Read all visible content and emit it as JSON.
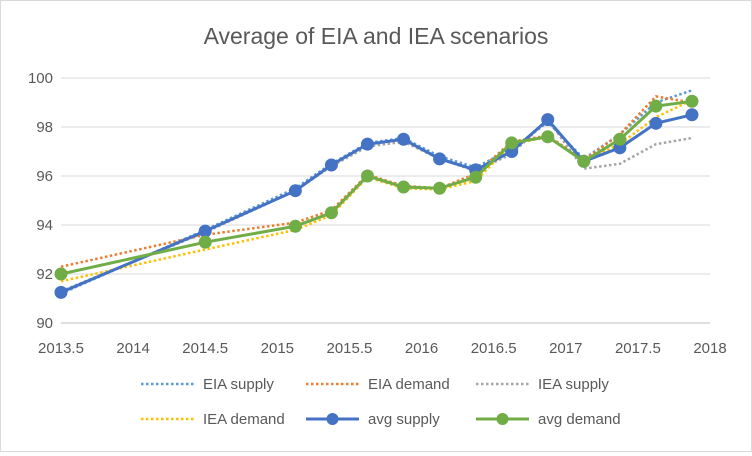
{
  "chart_data": {
    "type": "line",
    "title": "Average of EIA and IEA scenarios",
    "xlabel": "",
    "ylabel": "",
    "xlim": [
      2013.5,
      2018
    ],
    "ylim": [
      90,
      100
    ],
    "x_ticks": [
      "2013.5",
      "2014",
      "2014.5",
      "2015",
      "2015.5",
      "2016",
      "2016.5",
      "2017",
      "2017.5",
      "2018"
    ],
    "y_ticks": [
      "90",
      "92",
      "94",
      "96",
      "98",
      "100"
    ],
    "grid": "horizontal",
    "legend_position": "bottom",
    "series": [
      {
        "name": "EIA supply",
        "style": "dotted",
        "color": "#5b9bd5",
        "points": [
          [
            2013.5,
            91.2
          ],
          [
            2014.5,
            93.8
          ],
          [
            2015.125,
            95.5
          ],
          [
            2015.375,
            96.5
          ],
          [
            2015.625,
            97.35
          ],
          [
            2015.875,
            97.55
          ],
          [
            2016.125,
            96.8
          ],
          [
            2016.375,
            96.35
          ],
          [
            2016.625,
            97.1
          ],
          [
            2016.875,
            98.2
          ],
          [
            2017.125,
            96.7
          ],
          [
            2017.375,
            97.7
          ],
          [
            2017.625,
            99.0
          ],
          [
            2017.875,
            99.5
          ]
        ]
      },
      {
        "name": "EIA demand",
        "style": "dotted",
        "color": "#ed7d31",
        "points": [
          [
            2013.5,
            92.3
          ],
          [
            2014.5,
            93.6
          ],
          [
            2015.125,
            94.1
          ],
          [
            2015.375,
            94.6
          ],
          [
            2015.625,
            96.05
          ],
          [
            2015.875,
            95.6
          ],
          [
            2016.125,
            95.5
          ],
          [
            2016.375,
            96.1
          ],
          [
            2016.625,
            97.4
          ],
          [
            2016.875,
            97.65
          ],
          [
            2017.125,
            96.65
          ],
          [
            2017.375,
            97.7
          ],
          [
            2017.625,
            99.25
          ],
          [
            2017.875,
            99.0
          ]
        ]
      },
      {
        "name": "IEA supply",
        "style": "dotted",
        "color": "#a5a5a5",
        "points": [
          [
            2013.5,
            91.3
          ],
          [
            2014.5,
            93.7
          ],
          [
            2015.125,
            95.4
          ],
          [
            2015.375,
            96.4
          ],
          [
            2015.625,
            97.2
          ],
          [
            2015.875,
            97.4
          ],
          [
            2016.125,
            96.7
          ],
          [
            2016.375,
            96.2
          ],
          [
            2016.625,
            96.9
          ],
          [
            2016.875,
            98.3
          ],
          [
            2017.125,
            96.3
          ],
          [
            2017.375,
            96.5
          ],
          [
            2017.625,
            97.3
          ],
          [
            2017.875,
            97.55
          ]
        ]
      },
      {
        "name": "IEA demand",
        "style": "dotted",
        "color": "#ffc000",
        "points": [
          [
            2013.5,
            91.7
          ],
          [
            2014.5,
            93.0
          ],
          [
            2015.125,
            93.8
          ],
          [
            2015.375,
            94.4
          ],
          [
            2015.625,
            95.95
          ],
          [
            2015.875,
            95.5
          ],
          [
            2016.125,
            95.45
          ],
          [
            2016.375,
            95.8
          ],
          [
            2016.625,
            97.3
          ],
          [
            2016.875,
            97.6
          ],
          [
            2017.125,
            96.6
          ],
          [
            2017.375,
            97.3
          ],
          [
            2017.625,
            98.4
          ],
          [
            2017.875,
            99.1
          ]
        ]
      },
      {
        "name": "avg supply",
        "style": "solid-marker",
        "color": "#4472c4",
        "points": [
          [
            2013.5,
            91.25
          ],
          [
            2014.5,
            93.75
          ],
          [
            2015.125,
            95.4
          ],
          [
            2015.375,
            96.45
          ],
          [
            2015.625,
            97.3
          ],
          [
            2015.875,
            97.5
          ],
          [
            2016.125,
            96.7
          ],
          [
            2016.375,
            96.25
          ],
          [
            2016.625,
            97.0
          ],
          [
            2016.875,
            98.3
          ],
          [
            2017.125,
            96.6
          ],
          [
            2017.375,
            97.15
          ],
          [
            2017.625,
            98.15
          ],
          [
            2017.875,
            98.5
          ]
        ]
      },
      {
        "name": "avg demand",
        "style": "solid-marker",
        "color": "#70ad47",
        "points": [
          [
            2013.5,
            92.0
          ],
          [
            2014.5,
            93.3
          ],
          [
            2015.125,
            93.95
          ],
          [
            2015.375,
            94.5
          ],
          [
            2015.625,
            96.0
          ],
          [
            2015.875,
            95.55
          ],
          [
            2016.125,
            95.5
          ],
          [
            2016.375,
            95.95
          ],
          [
            2016.625,
            97.35
          ],
          [
            2016.875,
            97.6
          ],
          [
            2017.125,
            96.6
          ],
          [
            2017.375,
            97.5
          ],
          [
            2017.625,
            98.85
          ],
          [
            2017.875,
            99.05
          ]
        ]
      }
    ]
  }
}
